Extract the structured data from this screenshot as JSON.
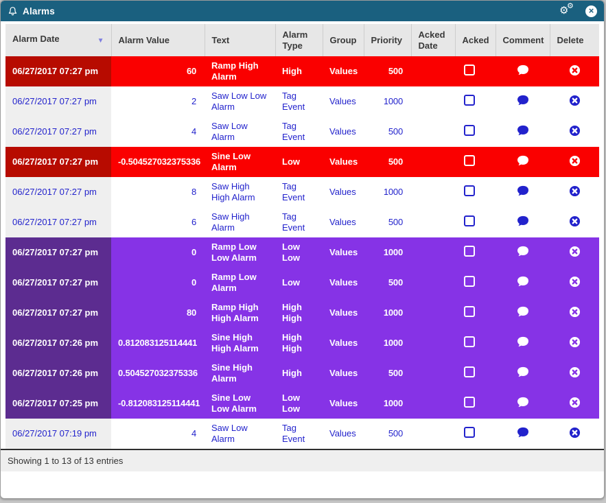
{
  "window": {
    "title": "Alarms",
    "titlebar_icons": [
      "bell-icon",
      "settings-gears-icon",
      "close-icon"
    ]
  },
  "colors": {
    "titlebar": "#1a607f",
    "alarm_red": "#fa0000",
    "alarm_red_dark": "#b70b00",
    "alarm_purple": "#8633e6",
    "alarm_purple_dark": "#5c2c90",
    "link_blue": "#2222cc",
    "header_gray": "#e7e7e7"
  },
  "table": {
    "columns": [
      {
        "label": "Alarm Date",
        "sorted": "desc"
      },
      {
        "label": "Alarm Value"
      },
      {
        "label": "Text"
      },
      {
        "label": "Alarm Type"
      },
      {
        "label": "Group"
      },
      {
        "label": "Priority"
      },
      {
        "label": "Acked Date"
      },
      {
        "label": "Acked"
      },
      {
        "label": "Comment"
      },
      {
        "label": "Delete"
      }
    ],
    "rows": [
      {
        "date": "06/27/2017 07:27 pm",
        "value": "60",
        "text": "Ramp High Alarm",
        "type": "High",
        "group": "Values",
        "priority": "500",
        "acked_date": "",
        "acked": false,
        "severity": "red"
      },
      {
        "date": "06/27/2017 07:27 pm",
        "value": "2",
        "text": "Saw Low Low Alarm",
        "type": "Tag Event",
        "group": "Values",
        "priority": "1000",
        "acked_date": "",
        "acked": false,
        "severity": "normal"
      },
      {
        "date": "06/27/2017 07:27 pm",
        "value": "4",
        "text": "Saw Low Alarm",
        "type": "Tag Event",
        "group": "Values",
        "priority": "500",
        "acked_date": "",
        "acked": false,
        "severity": "normal"
      },
      {
        "date": "06/27/2017 07:27 pm",
        "value": "-0.504527032375336",
        "text": "Sine Low Alarm",
        "type": "Low",
        "group": "Values",
        "priority": "500",
        "acked_date": "",
        "acked": false,
        "severity": "red"
      },
      {
        "date": "06/27/2017 07:27 pm",
        "value": "8",
        "text": "Saw High High Alarm",
        "type": "Tag Event",
        "group": "Values",
        "priority": "1000",
        "acked_date": "",
        "acked": false,
        "severity": "normal"
      },
      {
        "date": "06/27/2017 07:27 pm",
        "value": "6",
        "text": "Saw High Alarm",
        "type": "Tag Event",
        "group": "Values",
        "priority": "500",
        "acked_date": "",
        "acked": false,
        "severity": "normal"
      },
      {
        "date": "06/27/2017 07:27 pm",
        "value": "0",
        "text": "Ramp Low Low Alarm",
        "type": "Low Low",
        "group": "Values",
        "priority": "1000",
        "acked_date": "",
        "acked": false,
        "severity": "purple"
      },
      {
        "date": "06/27/2017 07:27 pm",
        "value": "0",
        "text": "Ramp Low Alarm",
        "type": "Low",
        "group": "Values",
        "priority": "500",
        "acked_date": "",
        "acked": false,
        "severity": "purple"
      },
      {
        "date": "06/27/2017 07:27 pm",
        "value": "80",
        "text": "Ramp High High Alarm",
        "type": "High High",
        "group": "Values",
        "priority": "1000",
        "acked_date": "",
        "acked": false,
        "severity": "purple"
      },
      {
        "date": "06/27/2017 07:26 pm",
        "value": "0.812083125114441",
        "text": "Sine High High Alarm",
        "type": "High High",
        "group": "Values",
        "priority": "1000",
        "acked_date": "",
        "acked": false,
        "severity": "purple"
      },
      {
        "date": "06/27/2017 07:26 pm",
        "value": "0.504527032375336",
        "text": "Sine High Alarm",
        "type": "High",
        "group": "Values",
        "priority": "500",
        "acked_date": "",
        "acked": false,
        "severity": "purple"
      },
      {
        "date": "06/27/2017 07:25 pm",
        "value": "-0.812083125114441",
        "text": "Sine Low Low Alarm",
        "type": "Low Low",
        "group": "Values",
        "priority": "1000",
        "acked_date": "",
        "acked": false,
        "severity": "purple"
      },
      {
        "date": "06/27/2017 07:19 pm",
        "value": "4",
        "text": "Saw Low Alarm",
        "type": "Tag Event",
        "group": "Values",
        "priority": "500",
        "acked_date": "",
        "acked": false,
        "severity": "normal"
      }
    ]
  },
  "footer": {
    "summary": "Showing 1 to 13 of 13 entries"
  }
}
